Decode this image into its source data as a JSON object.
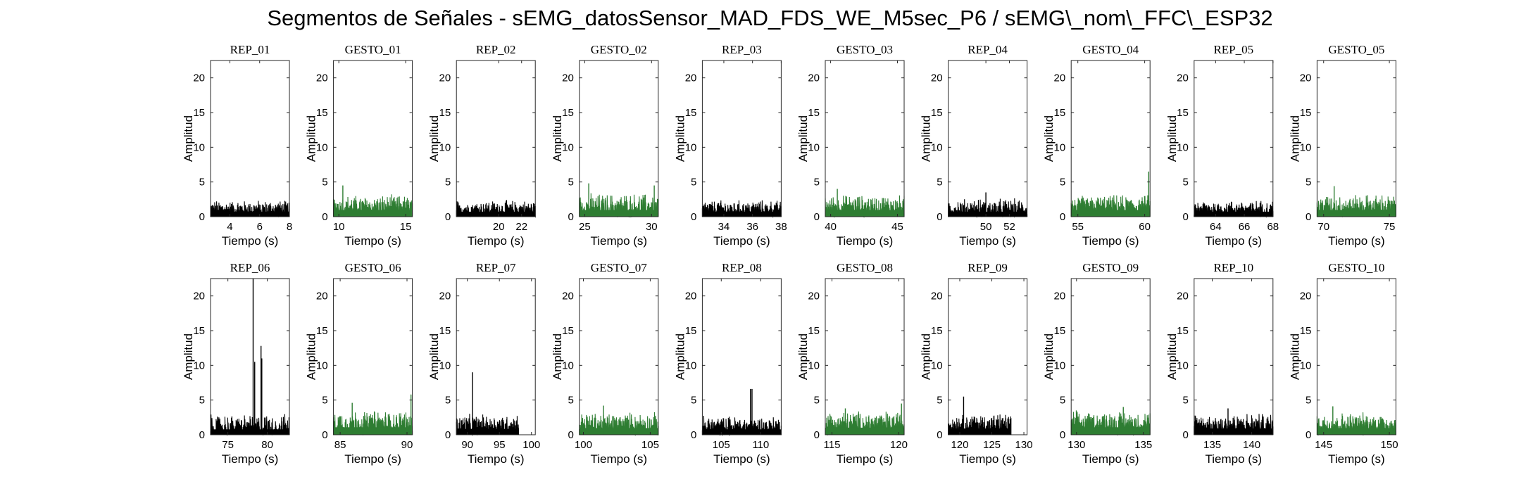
{
  "title": "Segmentos de Señales - sEMG_datosSensor_MAD_FDS_WE_M5sec_P6 / sEMG\\_nom\\_FFC\\_ESP32",
  "colors": {
    "rep": "#000000",
    "gesto": "#2e7d32"
  },
  "chart_data": [
    {
      "type": "line",
      "title": "REP_01",
      "xlabel": "Tiempo (s)",
      "ylabel": "Amplitud",
      "xlim": [
        2.7,
        8
      ],
      "ylim": [
        0,
        22.5
      ],
      "xticks": [
        4,
        6,
        8
      ],
      "yticks": [
        0,
        5,
        10,
        15,
        20
      ],
      "color_key": "rep",
      "series": [
        {
          "name": "",
          "base": 1.2,
          "noise": 1.0,
          "peaks": [],
          "data_end": 8
        }
      ]
    },
    {
      "type": "line",
      "title": "GESTO_01",
      "xlabel": "Tiempo (s)",
      "ylabel": "Amplitud",
      "xlim": [
        9.6,
        15.5
      ],
      "ylim": [
        0,
        22.5
      ],
      "xticks": [
        10,
        15
      ],
      "yticks": [
        0,
        5,
        10,
        15,
        20
      ],
      "color_key": "gesto",
      "series": [
        {
          "name": "",
          "base": 1.6,
          "noise": 1.3,
          "peaks": [
            {
              "x": 10.3,
              "y": 4.5
            }
          ],
          "data_end": 15.5
        }
      ]
    },
    {
      "type": "line",
      "title": "REP_02",
      "xlabel": "Tiempo (s)",
      "ylabel": "Amplitud",
      "xlim": [
        16.3,
        23.2
      ],
      "ylim": [
        0,
        22.5
      ],
      "xticks": [
        20,
        22
      ],
      "yticks": [
        0,
        5,
        10,
        15,
        20
      ],
      "color_key": "rep",
      "series": [
        {
          "name": "",
          "base": 1.2,
          "noise": 1.0,
          "peaks": [],
          "data_end": 23.2
        }
      ]
    },
    {
      "type": "line",
      "title": "GESTO_02",
      "xlabel": "Tiempo (s)",
      "ylabel": "Amplitud",
      "xlim": [
        24.6,
        30.5
      ],
      "ylim": [
        0,
        22.5
      ],
      "xticks": [
        25,
        30
      ],
      "yticks": [
        0,
        5,
        10,
        15,
        20
      ],
      "color_key": "gesto",
      "series": [
        {
          "name": "",
          "base": 1.6,
          "noise": 1.5,
          "peaks": [
            {
              "x": 25.3,
              "y": 4.8
            },
            {
              "x": 30.2,
              "y": 4.5
            }
          ],
          "data_end": 30.5
        }
      ]
    },
    {
      "type": "line",
      "title": "REP_03",
      "xlabel": "Tiempo (s)",
      "ylabel": "Amplitud",
      "xlim": [
        32.5,
        38
      ],
      "ylim": [
        0,
        22.5
      ],
      "xticks": [
        34,
        36,
        38
      ],
      "yticks": [
        0,
        5,
        10,
        15,
        20
      ],
      "color_key": "rep",
      "series": [
        {
          "name": "",
          "base": 1.2,
          "noise": 1.0,
          "peaks": [],
          "data_end": 38
        }
      ]
    },
    {
      "type": "line",
      "title": "GESTO_03",
      "xlabel": "Tiempo (s)",
      "ylabel": "Amplitud",
      "xlim": [
        39.6,
        45.5
      ],
      "ylim": [
        0,
        22.5
      ],
      "xticks": [
        40,
        45
      ],
      "yticks": [
        0,
        5,
        10,
        15,
        20
      ],
      "color_key": "gesto",
      "series": [
        {
          "name": "",
          "base": 1.6,
          "noise": 1.3,
          "peaks": [
            {
              "x": 40.5,
              "y": 4.0
            }
          ],
          "data_end": 45.5
        }
      ]
    },
    {
      "type": "line",
      "title": "REP_04",
      "xlabel": "Tiempo (s)",
      "ylabel": "Amplitud",
      "xlim": [
        46.8,
        53.5
      ],
      "ylim": [
        0,
        22.5
      ],
      "xticks": [
        50,
        52
      ],
      "yticks": [
        0,
        5,
        10,
        15,
        20
      ],
      "color_key": "rep",
      "series": [
        {
          "name": "",
          "base": 1.2,
          "noise": 1.2,
          "peaks": [
            {
              "x": 50,
              "y": 3.5
            }
          ],
          "data_end": 53.5
        }
      ]
    },
    {
      "type": "line",
      "title": "GESTO_04",
      "xlabel": "Tiempo (s)",
      "ylabel": "Amplitud",
      "xlim": [
        54.5,
        60.4
      ],
      "ylim": [
        0,
        22.5
      ],
      "xticks": [
        55,
        60
      ],
      "yticks": [
        0,
        5,
        10,
        15,
        20
      ],
      "color_key": "gesto",
      "series": [
        {
          "name": "",
          "base": 1.6,
          "noise": 1.3,
          "peaks": [
            {
              "x": 60.3,
              "y": 6.5
            }
          ],
          "data_end": 60.4
        }
      ]
    },
    {
      "type": "line",
      "title": "REP_05",
      "xlabel": "Tiempo (s)",
      "ylabel": "Amplitud",
      "xlim": [
        62.5,
        68
      ],
      "ylim": [
        0,
        22.5
      ],
      "xticks": [
        64,
        66,
        68
      ],
      "yticks": [
        0,
        5,
        10,
        15,
        20
      ],
      "color_key": "rep",
      "series": [
        {
          "name": "",
          "base": 1.2,
          "noise": 1.0,
          "peaks": [],
          "data_end": 68
        }
      ]
    },
    {
      "type": "line",
      "title": "GESTO_05",
      "xlabel": "Tiempo (s)",
      "ylabel": "Amplitud",
      "xlim": [
        69.5,
        75.5
      ],
      "ylim": [
        0,
        22.5
      ],
      "xticks": [
        70,
        75
      ],
      "yticks": [
        0,
        5,
        10,
        15,
        20
      ],
      "color_key": "gesto",
      "series": [
        {
          "name": "",
          "base": 1.6,
          "noise": 1.4,
          "peaks": [
            {
              "x": 70.8,
              "y": 4.4
            }
          ],
          "data_end": 75.5
        }
      ]
    },
    {
      "type": "line",
      "title": "REP_06",
      "xlabel": "Tiempo (s)",
      "ylabel": "Amplitud",
      "xlim": [
        72.8,
        82.8
      ],
      "ylim": [
        0,
        22.5
      ],
      "xticks": [
        75,
        80
      ],
      "yticks": [
        0,
        5,
        10,
        15,
        20
      ],
      "color_key": "rep",
      "series": [
        {
          "name": "",
          "base": 1.3,
          "noise": 1.4,
          "peaks": [
            {
              "x": 78.2,
              "y": 22.5
            },
            {
              "x": 78.4,
              "y": 10.5
            },
            {
              "x": 79.2,
              "y": 12.8
            },
            {
              "x": 79.3,
              "y": 11.0
            }
          ],
          "data_end": 82.8
        }
      ]
    },
    {
      "type": "line",
      "title": "GESTO_06",
      "xlabel": "Tiempo (s)",
      "ylabel": "Amplitud",
      "xlim": [
        84.5,
        90.4
      ],
      "ylim": [
        0,
        22.5
      ],
      "xticks": [
        85,
        90
      ],
      "yticks": [
        0,
        5,
        10,
        15,
        20
      ],
      "color_key": "gesto",
      "series": [
        {
          "name": "",
          "base": 1.8,
          "noise": 1.5,
          "peaks": [
            {
              "x": 85.9,
              "y": 4.6
            },
            {
              "x": 90.3,
              "y": 5.8
            }
          ],
          "data_end": 90.4
        }
      ]
    },
    {
      "type": "line",
      "title": "REP_07",
      "xlabel": "Tiempo (s)",
      "ylabel": "Amplitud",
      "xlim": [
        88.3,
        100.6
      ],
      "ylim": [
        0,
        22.5
      ],
      "xticks": [
        90,
        95,
        100
      ],
      "yticks": [
        0,
        5,
        10,
        15,
        20
      ],
      "color_key": "rep",
      "series": [
        {
          "name": "",
          "base": 1.4,
          "noise": 1.3,
          "peaks": [
            {
              "x": 90.8,
              "y": 9.0
            }
          ],
          "data_end": 98.0
        }
      ]
    },
    {
      "type": "line",
      "title": "GESTO_07",
      "xlabel": "Tiempo (s)",
      "ylabel": "Amplitud",
      "xlim": [
        99.7,
        105.6
      ],
      "ylim": [
        0,
        22.5
      ],
      "xticks": [
        100,
        105
      ],
      "yticks": [
        0,
        5,
        10,
        15,
        20
      ],
      "color_key": "gesto",
      "series": [
        {
          "name": "",
          "base": 1.6,
          "noise": 1.4,
          "peaks": [
            {
              "x": 101.5,
              "y": 4.2
            }
          ],
          "data_end": 105.6
        }
      ]
    },
    {
      "type": "line",
      "title": "REP_08",
      "xlabel": "Tiempo (s)",
      "ylabel": "Amplitud",
      "xlim": [
        102.6,
        112.6
      ],
      "ylim": [
        0,
        22.5
      ],
      "xticks": [
        105,
        110
      ],
      "yticks": [
        0,
        5,
        10,
        15,
        20
      ],
      "color_key": "rep",
      "series": [
        {
          "name": "",
          "base": 1.3,
          "noise": 1.2,
          "peaks": [
            {
              "x": 108.7,
              "y": 6.6
            },
            {
              "x": 108.9,
              "y": 6.6
            }
          ],
          "data_end": 112.6
        }
      ]
    },
    {
      "type": "line",
      "title": "GESTO_08",
      "xlabel": "Tiempo (s)",
      "ylabel": "Amplitud",
      "xlim": [
        114.5,
        120.4
      ],
      "ylim": [
        0,
        22.5
      ],
      "xticks": [
        115,
        120
      ],
      "yticks": [
        0,
        5,
        10,
        15,
        20
      ],
      "color_key": "gesto",
      "series": [
        {
          "name": "",
          "base": 1.7,
          "noise": 1.5,
          "peaks": [
            {
              "x": 116.0,
              "y": 3.8
            },
            {
              "x": 120.2,
              "y": 4.5
            }
          ],
          "data_end": 120.4
        }
      ]
    },
    {
      "type": "line",
      "title": "REP_09",
      "xlabel": "Tiempo (s)",
      "ylabel": "Amplitud",
      "xlim": [
        118.2,
        130.5
      ],
      "ylim": [
        0,
        22.5
      ],
      "xticks": [
        120,
        125,
        130
      ],
      "yticks": [
        0,
        5,
        10,
        15,
        20
      ],
      "color_key": "rep",
      "series": [
        {
          "name": "",
          "base": 1.5,
          "noise": 1.3,
          "peaks": [
            {
              "x": 120.6,
              "y": 5.5
            }
          ],
          "data_end": 128.0
        }
      ]
    },
    {
      "type": "line",
      "title": "GESTO_09",
      "xlabel": "Tiempo (s)",
      "ylabel": "Amplitud",
      "xlim": [
        129.6,
        135.5
      ],
      "ylim": [
        0,
        22.5
      ],
      "xticks": [
        130,
        135
      ],
      "yticks": [
        0,
        5,
        10,
        15,
        20
      ],
      "color_key": "gesto",
      "series": [
        {
          "name": "",
          "base": 1.8,
          "noise": 1.4,
          "peaks": [
            {
              "x": 133.5,
              "y": 4.0
            }
          ],
          "data_end": 135.5
        }
      ]
    },
    {
      "type": "line",
      "title": "REP_10",
      "xlabel": "Tiempo (s)",
      "ylabel": "Amplitud",
      "xlim": [
        132.7,
        142.7
      ],
      "ylim": [
        0,
        22.5
      ],
      "xticks": [
        135,
        140
      ],
      "yticks": [
        0,
        5,
        10,
        15,
        20
      ],
      "color_key": "rep",
      "series": [
        {
          "name": "",
          "base": 1.5,
          "noise": 1.4,
          "peaks": [
            {
              "x": 137.0,
              "y": 3.8
            }
          ],
          "data_end": 142.7
        }
      ]
    },
    {
      "type": "line",
      "title": "GESTO_10",
      "xlabel": "Tiempo (s)",
      "ylabel": "Amplitud",
      "xlim": [
        144.5,
        150.5
      ],
      "ylim": [
        0,
        22.5
      ],
      "xticks": [
        145,
        150
      ],
      "yticks": [
        0,
        5,
        10,
        15,
        20
      ],
      "color_key": "gesto",
      "series": [
        {
          "name": "",
          "base": 1.6,
          "noise": 1.4,
          "peaks": [
            {
              "x": 145.7,
              "y": 4.1
            }
          ],
          "data_end": 150.5
        }
      ]
    }
  ]
}
